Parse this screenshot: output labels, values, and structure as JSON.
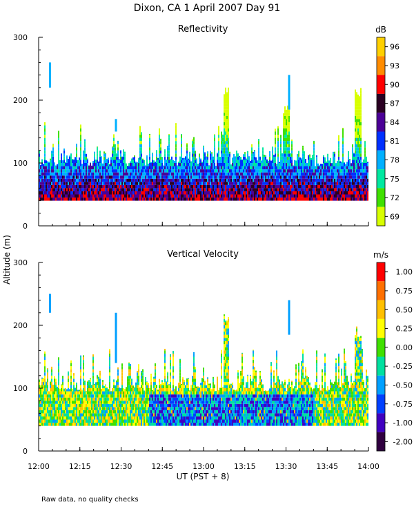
{
  "title": "Dixon, CA   1 April 2007   Day   91",
  "note": "Raw data, no quality checks",
  "shared_ylabel": "Altitude  (m)",
  "shared_xlabel": "UT   (PST + 8)",
  "chart_data": [
    {
      "type": "heatmap",
      "title": "Reflectivity",
      "xlabel": "UT   (PST + 8)",
      "ylabel": "Altitude  (m)",
      "x_ticks": [
        "12:00",
        "12:15",
        "12:30",
        "12:45",
        "13:00",
        "13:15",
        "13:30",
        "13:45",
        "14:00"
      ],
      "x_range_minutes": [
        0,
        120
      ],
      "y_ticks": [
        0,
        100,
        200,
        300
      ],
      "ylim": [
        0,
        300
      ],
      "data_bottom_m": 40,
      "typical_top_m": 120,
      "colorbar": {
        "unit": "dB",
        "tick_labels": [
          "96",
          "93",
          "90",
          "87",
          "84",
          "81",
          "78",
          "75",
          "72",
          "69"
        ],
        "value_range": [
          68,
          98
        ],
        "colors": [
          "#ffd000",
          "#ff8c00",
          "#ff0000",
          "#2a0022",
          "#4b0096",
          "#0030ff",
          "#00b0ff",
          "#00e8a0",
          "#40e000",
          "#d8ff00"
        ]
      },
      "echo_tops": [
        {
          "minute": 4,
          "top_m": 260,
          "bottom_m": 220
        },
        {
          "minute": 28,
          "top_m": 170,
          "bottom_m": 150
        },
        {
          "minute": 68,
          "top_m": 220,
          "bottom_m": 120
        },
        {
          "minute": 90,
          "top_m": 195,
          "bottom_m": 120
        },
        {
          "minute": 91,
          "top_m": 240,
          "bottom_m": 185
        },
        {
          "minute": 116,
          "top_m": 220,
          "bottom_m": 120
        }
      ]
    },
    {
      "type": "heatmap",
      "title": "Vertical Velocity",
      "xlabel": "UT   (PST + 8)",
      "ylabel": "Altitude  (m)",
      "x_ticks": [
        "12:00",
        "12:15",
        "12:30",
        "12:45",
        "13:00",
        "13:15",
        "13:30",
        "13:45",
        "14:00"
      ],
      "x_range_minutes": [
        0,
        120
      ],
      "y_ticks": [
        0,
        100,
        200,
        300
      ],
      "ylim": [
        0,
        300
      ],
      "data_bottom_m": 40,
      "typical_top_m": 120,
      "colorbar": {
        "unit": "m/s",
        "tick_labels": [
          "1.00",
          "0.75",
          "0.50",
          "0.25",
          "0.00",
          "-0.25",
          "-0.50",
          "-0.75",
          "-1.00",
          "-2.00"
        ],
        "value_range": [
          -2.0,
          1.25
        ],
        "colors": [
          "#ff0000",
          "#ff7000",
          "#ffc000",
          "#ffff00",
          "#40e000",
          "#00e0a0",
          "#00a0ff",
          "#0040ff",
          "#4000c0",
          "#300040"
        ]
      },
      "echo_tops": [
        {
          "minute": 4,
          "top_m": 250,
          "bottom_m": 220
        },
        {
          "minute": 28,
          "top_m": 220,
          "bottom_m": 140
        },
        {
          "minute": 68,
          "top_m": 220,
          "bottom_m": 120
        },
        {
          "minute": 91,
          "top_m": 240,
          "bottom_m": 185
        },
        {
          "minute": 116,
          "top_m": 200,
          "bottom_m": 120
        }
      ]
    }
  ]
}
